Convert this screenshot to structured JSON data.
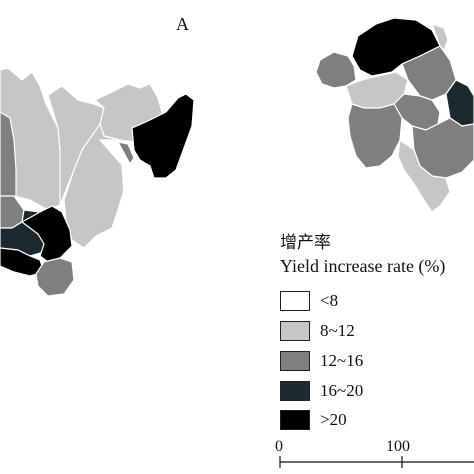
{
  "panel_label": "A",
  "legend": {
    "title_zh": "增产率",
    "title_en": "Yield increase rate (%)",
    "items": [
      {
        "label": "<8",
        "color": "#ffffff"
      },
      {
        "label": "8~12",
        "color": "#c6c6c6"
      },
      {
        "label": "12~16",
        "color": "#7f7f7f"
      },
      {
        "label": "16~20",
        "color": "#1c2a30"
      },
      {
        "label": ">20",
        "color": "#000000"
      }
    ]
  },
  "scale_bar": {
    "ticks": [
      "0",
      "100"
    ]
  },
  "map_colors": {
    "lt8": "#ffffff",
    "c8_12": "#c6c6c6",
    "c12_16": "#7f7f7f",
    "c16_20": "#1c2a30",
    "gt20": "#000000",
    "border": "#ffffff"
  }
}
